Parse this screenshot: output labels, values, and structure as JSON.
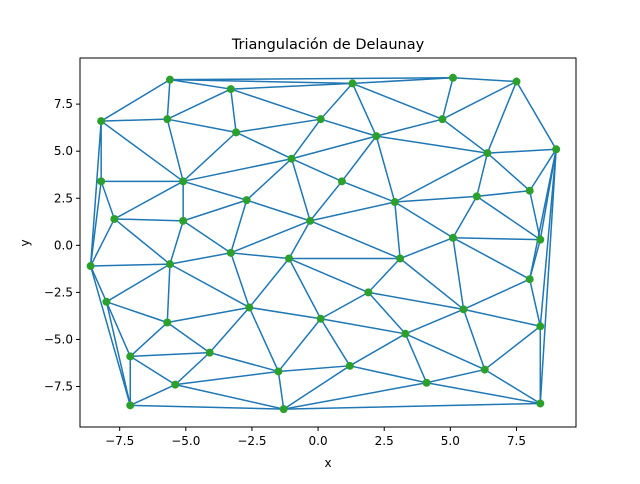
{
  "chart_data": {
    "type": "scatter",
    "title": "Triangulación de Delaunay",
    "xlabel": "x",
    "ylabel": "y",
    "xlim": [
      -9.0,
      9.75
    ],
    "ylim": [
      -9.65,
      9.95
    ],
    "xticks": [
      -7.5,
      -5.0,
      -2.5,
      0.0,
      2.5,
      5.0,
      7.5
    ],
    "xtick_labels": [
      "−7.5",
      "−5.0",
      "−2.5",
      "0.0",
      "2.5",
      "5.0",
      "7.5"
    ],
    "yticks": [
      -7.5,
      -5.0,
      -2.5,
      0.0,
      2.5,
      5.0,
      7.5
    ],
    "ytick_labels": [
      "−7.5",
      "−5.0",
      "−2.5",
      "0.0",
      "2.5",
      "5.0",
      "7.5"
    ],
    "grid": false,
    "colors": {
      "edges": "#1f77b4",
      "points": "#2ca02c"
    },
    "points": [
      [
        -5.6,
        8.8
      ],
      [
        -3.3,
        8.3
      ],
      [
        1.3,
        8.6
      ],
      [
        5.1,
        8.9
      ],
      [
        7.5,
        8.7
      ],
      [
        -8.2,
        6.6
      ],
      [
        -5.7,
        6.7
      ],
      [
        -3.1,
        6.0
      ],
      [
        0.1,
        6.7
      ],
      [
        2.2,
        5.8
      ],
      [
        4.7,
        6.7
      ],
      [
        -8.2,
        3.4
      ],
      [
        -5.1,
        3.4
      ],
      [
        -1.0,
        4.6
      ],
      [
        0.9,
        3.4
      ],
      [
        6.4,
        4.9
      ],
      [
        9.0,
        5.1
      ],
      [
        -7.7,
        1.4
      ],
      [
        -5.1,
        1.3
      ],
      [
        -2.7,
        2.4
      ],
      [
        -0.3,
        1.3
      ],
      [
        2.9,
        2.3
      ],
      [
        6.0,
        2.6
      ],
      [
        8.0,
        2.9
      ],
      [
        -8.6,
        -1.1
      ],
      [
        -5.6,
        -1.0
      ],
      [
        -3.3,
        -0.4
      ],
      [
        -1.1,
        -0.7
      ],
      [
        3.1,
        -0.7
      ],
      [
        5.1,
        0.4
      ],
      [
        8.4,
        0.3
      ],
      [
        -8.0,
        -3.0
      ],
      [
        -2.6,
        -3.3
      ],
      [
        1.9,
        -2.5
      ],
      [
        5.5,
        -3.4
      ],
      [
        8.0,
        -1.8
      ],
      [
        -5.7,
        -4.1
      ],
      [
        0.1,
        -3.9
      ],
      [
        3.3,
        -4.7
      ],
      [
        8.4,
        -4.3
      ],
      [
        -7.1,
        -5.9
      ],
      [
        -4.1,
        -5.7
      ],
      [
        -1.5,
        -6.7
      ],
      [
        1.2,
        -6.4
      ],
      [
        6.3,
        -6.6
      ],
      [
        -5.4,
        -7.4
      ],
      [
        4.1,
        -7.3
      ],
      [
        -7.1,
        -8.5
      ],
      [
        -1.3,
        -8.7
      ],
      [
        8.4,
        -8.4
      ]
    ],
    "triangles": [
      [
        0,
        1,
        6
      ],
      [
        0,
        6,
        5
      ],
      [
        1,
        7,
        6
      ],
      [
        1,
        2,
        8
      ],
      [
        1,
        8,
        7
      ],
      [
        0,
        2,
        1
      ],
      [
        0,
        3,
        2
      ],
      [
        2,
        3,
        10
      ],
      [
        2,
        10,
        9
      ],
      [
        2,
        9,
        8
      ],
      [
        3,
        4,
        10
      ],
      [
        4,
        15,
        10
      ],
      [
        4,
        16,
        15
      ],
      [
        5,
        6,
        12
      ],
      [
        5,
        12,
        11
      ],
      [
        6,
        7,
        12
      ],
      [
        7,
        13,
        12
      ],
      [
        7,
        8,
        13
      ],
      [
        8,
        9,
        13
      ],
      [
        9,
        14,
        13
      ],
      [
        9,
        21,
        14
      ],
      [
        9,
        10,
        15
      ],
      [
        9,
        15,
        21
      ],
      [
        15,
        22,
        21
      ],
      [
        15,
        23,
        22
      ],
      [
        15,
        16,
        23
      ],
      [
        11,
        12,
        17
      ],
      [
        12,
        18,
        17
      ],
      [
        12,
        19,
        18
      ],
      [
        12,
        13,
        19
      ],
      [
        13,
        20,
        19
      ],
      [
        13,
        14,
        20
      ],
      [
        14,
        21,
        20
      ],
      [
        21,
        28,
        20
      ],
      [
        21,
        29,
        28
      ],
      [
        21,
        22,
        29
      ],
      [
        22,
        30,
        29
      ],
      [
        22,
        23,
        30
      ],
      [
        23,
        16,
        30
      ],
      [
        11,
        17,
        24
      ],
      [
        5,
        11,
        24
      ],
      [
        17,
        25,
        24
      ],
      [
        17,
        18,
        25
      ],
      [
        18,
        26,
        25
      ],
      [
        18,
        19,
        26
      ],
      [
        19,
        20,
        26
      ],
      [
        20,
        27,
        26
      ],
      [
        20,
        28,
        27
      ],
      [
        24,
        25,
        31
      ],
      [
        25,
        36,
        31
      ],
      [
        25,
        32,
        36
      ],
      [
        25,
        26,
        32
      ],
      [
        26,
        27,
        32
      ],
      [
        27,
        37,
        32
      ],
      [
        27,
        33,
        37
      ],
      [
        27,
        28,
        33
      ],
      [
        28,
        34,
        33
      ],
      [
        28,
        29,
        34
      ],
      [
        29,
        35,
        34
      ],
      [
        29,
        30,
        35
      ],
      [
        30,
        16,
        35
      ],
      [
        35,
        39,
        34
      ],
      [
        35,
        16,
        39
      ],
      [
        31,
        36,
        40
      ],
      [
        31,
        40,
        47
      ],
      [
        24,
        31,
        47
      ],
      [
        36,
        41,
        40
      ],
      [
        36,
        32,
        41
      ],
      [
        32,
        42,
        41
      ],
      [
        32,
        37,
        42
      ],
      [
        37,
        43,
        42
      ],
      [
        37,
        38,
        43
      ],
      [
        37,
        33,
        38
      ],
      [
        33,
        34,
        38
      ],
      [
        34,
        44,
        38
      ],
      [
        34,
        39,
        44
      ],
      [
        39,
        49,
        44
      ],
      [
        39,
        16,
        49
      ],
      [
        40,
        45,
        47
      ],
      [
        40,
        41,
        45
      ],
      [
        41,
        42,
        45
      ],
      [
        45,
        48,
        47
      ],
      [
        45,
        42,
        48
      ],
      [
        42,
        43,
        48
      ],
      [
        43,
        46,
        48
      ],
      [
        43,
        38,
        46
      ],
      [
        38,
        44,
        46
      ],
      [
        44,
        49,
        46
      ],
      [
        46,
        49,
        48
      ]
    ]
  }
}
